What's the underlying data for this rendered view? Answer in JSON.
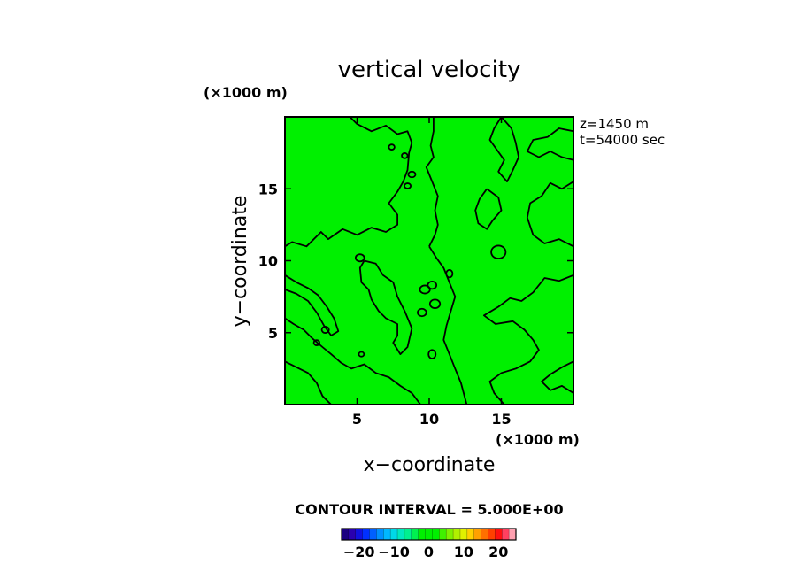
{
  "chart_data": {
    "type": "contour",
    "title": "vertical velocity",
    "xlabel": "x−coordinate",
    "ylabel": "y−coordinate",
    "x_unit_label": "(×1000 m)",
    "y_unit_label": "(×1000 m)",
    "xlim": [
      0,
      20
    ],
    "ylim": [
      0,
      20
    ],
    "x_ticks": [
      5,
      10,
      15
    ],
    "y_ticks": [
      5,
      10,
      15
    ],
    "x_tick_labels": [
      "5",
      "10",
      "15"
    ],
    "y_tick_labels": [
      "5",
      "10",
      "15"
    ],
    "annotation_level": "z=1450 m",
    "annotation_time": "t=54000 sec",
    "contour_interval_text": "CONTOUR INTERVAL = 5.000E+00",
    "contour_interval": 5.0,
    "field_fill_color": "#00f000",
    "colorbar": {
      "range": [
        -25,
        25
      ],
      "tick_values": [
        -20,
        -10,
        0,
        10,
        20
      ],
      "tick_labels": [
        "−20",
        "−10",
        "0",
        "10",
        "20"
      ],
      "colors": [
        "#1a0080",
        "#2a00b0",
        "#1010e0",
        "#0030ff",
        "#0060ff",
        "#0090ff",
        "#00b8ff",
        "#00d8e8",
        "#00e8c0",
        "#00f090",
        "#00f050",
        "#00f000",
        "#00f000",
        "#00f000",
        "#40f000",
        "#80f000",
        "#b0f000",
        "#e0f000",
        "#ffd000",
        "#ffa000",
        "#ff7000",
        "#ff4000",
        "#ff1010",
        "#ff4060",
        "#ffa0b0"
      ]
    },
    "zero_contours": [
      [
        [
          4.5,
          20
        ],
        [
          5,
          19.5
        ],
        [
          6,
          19
        ],
        [
          7,
          19.4
        ],
        [
          7.8,
          18.8
        ],
        [
          8.5,
          19
        ],
        [
          8.8,
          18.2
        ],
        [
          8.6,
          17.5
        ],
        [
          8.5,
          16.3
        ],
        [
          8.2,
          15.5
        ],
        [
          7.8,
          14.8
        ],
        [
          7.2,
          14
        ],
        [
          7.8,
          13.2
        ],
        [
          7.8,
          12.5
        ],
        [
          7,
          12
        ],
        [
          6,
          12.3
        ],
        [
          5,
          11.8
        ],
        [
          4,
          12.2
        ],
        [
          3,
          11.5
        ],
        [
          2.5,
          12
        ],
        [
          1.5,
          11
        ],
        [
          0.5,
          11.3
        ],
        [
          0,
          11
        ]
      ],
      [
        [
          10.3,
          20
        ],
        [
          10.3,
          19
        ],
        [
          10.1,
          18
        ],
        [
          10.3,
          17.2
        ],
        [
          9.8,
          16.5
        ],
        [
          10.2,
          15.5
        ],
        [
          10.6,
          14.5
        ],
        [
          10.4,
          13.5
        ],
        [
          10.6,
          12.5
        ],
        [
          10.4,
          11.8
        ],
        [
          10,
          11
        ]
      ],
      [
        [
          10,
          11
        ],
        [
          10.5,
          10.2
        ],
        [
          11,
          9.5
        ],
        [
          11.4,
          8.5
        ],
        [
          11.8,
          7.5
        ],
        [
          11.5,
          6.5
        ],
        [
          11.2,
          5.5
        ],
        [
          11,
          4.5
        ],
        [
          11.4,
          3.5
        ],
        [
          11.8,
          2.5
        ],
        [
          12.2,
          1.5
        ],
        [
          12.6,
          0
        ]
      ],
      [
        [
          5.5,
          10
        ],
        [
          5.2,
          9.5
        ],
        [
          5.3,
          8.5
        ],
        [
          5.8,
          8
        ],
        [
          6,
          7.3
        ],
        [
          6.5,
          6.5
        ],
        [
          7,
          6
        ],
        [
          7.8,
          5.6
        ],
        [
          7.8,
          4.8
        ],
        [
          7.5,
          4.3
        ],
        [
          8,
          3.5
        ],
        [
          8.5,
          4
        ],
        [
          8.8,
          5.3
        ],
        [
          8.3,
          6.5
        ],
        [
          7.8,
          7.5
        ],
        [
          7.5,
          8.5
        ],
        [
          6.8,
          9
        ],
        [
          6.3,
          9.8
        ],
        [
          5.5,
          10
        ]
      ],
      [
        [
          15,
          20
        ],
        [
          14.5,
          19.2
        ],
        [
          14.2,
          18.4
        ],
        [
          14.7,
          17.7
        ],
        [
          15.2,
          17
        ],
        [
          14.8,
          16.2
        ],
        [
          15.4,
          15.5
        ],
        [
          15.8,
          16.3
        ],
        [
          16.2,
          17.2
        ],
        [
          16,
          18.2
        ],
        [
          15.7,
          19.2
        ],
        [
          15,
          20
        ]
      ],
      [
        [
          14,
          15
        ],
        [
          13.5,
          14.3
        ],
        [
          13.2,
          13.5
        ],
        [
          13.4,
          12.6
        ],
        [
          14,
          12.2
        ],
        [
          14.4,
          12.8
        ],
        [
          15,
          13.5
        ],
        [
          14.8,
          14.4
        ],
        [
          14,
          15
        ]
      ],
      [
        [
          20,
          15.5
        ],
        [
          19.2,
          15
        ],
        [
          18.4,
          15.4
        ],
        [
          17.8,
          14.5
        ],
        [
          17,
          14
        ],
        [
          16.8,
          13
        ],
        [
          17.2,
          11.8
        ],
        [
          18,
          11.2
        ],
        [
          19,
          11.5
        ],
        [
          20,
          11
        ]
      ],
      [
        [
          20,
          19
        ],
        [
          19,
          19.2
        ],
        [
          18.2,
          18.6
        ],
        [
          17.2,
          18.4
        ],
        [
          16.8,
          17.6
        ],
        [
          17.6,
          17.2
        ],
        [
          18.4,
          17.6
        ],
        [
          19.2,
          17.2
        ],
        [
          20,
          17
        ]
      ],
      [
        [
          20,
          9
        ],
        [
          19,
          8.6
        ],
        [
          18,
          8.8
        ],
        [
          17.2,
          7.8
        ],
        [
          16.4,
          7.2
        ],
        [
          15.6,
          7.4
        ],
        [
          14.8,
          6.8
        ],
        [
          13.8,
          6.2
        ],
        [
          14.6,
          5.6
        ],
        [
          15.8,
          5.8
        ],
        [
          16.6,
          5.2
        ],
        [
          17.2,
          4.5
        ],
        [
          17.6,
          3.8
        ],
        [
          17,
          3
        ],
        [
          16,
          2.5
        ],
        [
          15,
          2.2
        ],
        [
          14.2,
          1.6
        ],
        [
          14.5,
          0.8
        ],
        [
          15.2,
          0
        ]
      ],
      [
        [
          20,
          3
        ],
        [
          19.2,
          2.6
        ],
        [
          18.4,
          2.1
        ],
        [
          17.8,
          1.6
        ],
        [
          18.4,
          1
        ],
        [
          19.2,
          1.3
        ],
        [
          20,
          0.8
        ]
      ],
      [
        [
          0,
          6
        ],
        [
          0.6,
          5.6
        ],
        [
          1.3,
          5.2
        ],
        [
          1.9,
          4.6
        ],
        [
          2.6,
          4
        ],
        [
          3.2,
          3.5
        ],
        [
          3.9,
          2.9
        ],
        [
          4.6,
          2.5
        ],
        [
          5.5,
          2.8
        ],
        [
          6.3,
          2.2
        ],
        [
          7.2,
          1.9
        ],
        [
          8,
          1.3
        ],
        [
          8.8,
          0.8
        ],
        [
          9.4,
          0
        ]
      ],
      [
        [
          0,
          3
        ],
        [
          0.8,
          2.6
        ],
        [
          1.6,
          2.2
        ],
        [
          2.2,
          1.5
        ],
        [
          2.6,
          0.6
        ],
        [
          3.2,
          0
        ]
      ],
      [
        [
          0,
          9
        ],
        [
          0.8,
          8.5
        ],
        [
          1.6,
          8.1
        ],
        [
          2.3,
          7.6
        ],
        [
          2.9,
          6.8
        ],
        [
          3.4,
          6
        ],
        [
          3.7,
          5.1
        ],
        [
          3.2,
          4.8
        ],
        [
          2.7,
          5.5
        ],
        [
          2.2,
          6.4
        ],
        [
          1.6,
          7.2
        ],
        [
          0.8,
          7.7
        ],
        [
          0,
          8
        ]
      ]
    ],
    "closed_cells": [
      {
        "x": 9.7,
        "y": 8.0,
        "rx": 0.35,
        "ry": 0.28
      },
      {
        "x": 10.4,
        "y": 7.0,
        "rx": 0.35,
        "ry": 0.3
      },
      {
        "x": 9.5,
        "y": 6.4,
        "rx": 0.3,
        "ry": 0.26
      },
      {
        "x": 10.2,
        "y": 8.3,
        "rx": 0.3,
        "ry": 0.26
      },
      {
        "x": 8.8,
        "y": 16.0,
        "rx": 0.25,
        "ry": 0.2
      },
      {
        "x": 8.5,
        "y": 15.2,
        "rx": 0.22,
        "ry": 0.18
      },
      {
        "x": 8.3,
        "y": 17.3,
        "rx": 0.2,
        "ry": 0.18
      },
      {
        "x": 2.8,
        "y": 5.2,
        "rx": 0.25,
        "ry": 0.22
      },
      {
        "x": 2.2,
        "y": 4.3,
        "rx": 0.2,
        "ry": 0.18
      },
      {
        "x": 5.3,
        "y": 3.5,
        "rx": 0.18,
        "ry": 0.16
      },
      {
        "x": 5.2,
        "y": 10.2,
        "rx": 0.3,
        "ry": 0.25
      },
      {
        "x": 14.8,
        "y": 10.6,
        "rx": 0.5,
        "ry": 0.45
      },
      {
        "x": 10.2,
        "y": 3.5,
        "rx": 0.25,
        "ry": 0.3
      },
      {
        "x": 7.4,
        "y": 17.9,
        "rx": 0.2,
        "ry": 0.18
      },
      {
        "x": 11.4,
        "y": 9.1,
        "rx": 0.22,
        "ry": 0.26
      }
    ]
  }
}
